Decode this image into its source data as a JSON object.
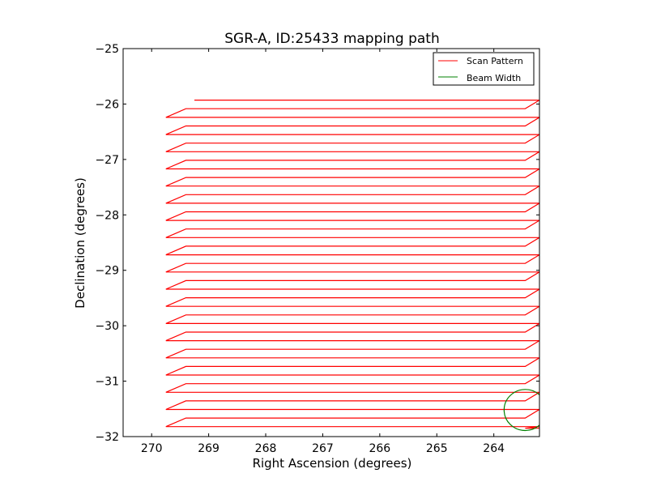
{
  "chart_data": {
    "type": "line",
    "title": "SGR-A, ID:25433 mapping path",
    "xlabel": "Right Ascension (degrees)",
    "ylabel": "Declination (degrees)",
    "xlim": [
      270.5,
      263.2
    ],
    "ylim": [
      -32,
      -25
    ],
    "x_inverted": true,
    "x_ticks": [
      270,
      269,
      268,
      267,
      266,
      265,
      264
    ],
    "x_tick_labels": [
      "270",
      "269",
      "268",
      "267",
      "266",
      "265",
      "264"
    ],
    "y_ticks": [
      -25,
      -26,
      -27,
      -28,
      -29,
      -30,
      -31,
      -32
    ],
    "y_tick_labels": [
      "−25",
      "−26",
      "−27",
      "−28",
      "−29",
      "−30",
      "−31",
      "−32"
    ],
    "grid": false,
    "legend_position": "top-right",
    "series": [
      {
        "name": "Scan Pattern",
        "color": "#ff0000",
        "pattern": "boustrophedon raster",
        "ra_start": 269.25,
        "ra_left_turn": 269.75,
        "ra_left_inner": 269.4,
        "ra_right_turn": 263.2,
        "ra_right_inner": 263.45,
        "dec_start": -25.93,
        "dec_end": -31.85,
        "dec_step": 0.155,
        "legs": 39
      },
      {
        "name": "Beam Width",
        "color": "#008000",
        "center_ra": 263.45,
        "center_dec": -31.52,
        "radius_deg": 0.37
      }
    ]
  }
}
